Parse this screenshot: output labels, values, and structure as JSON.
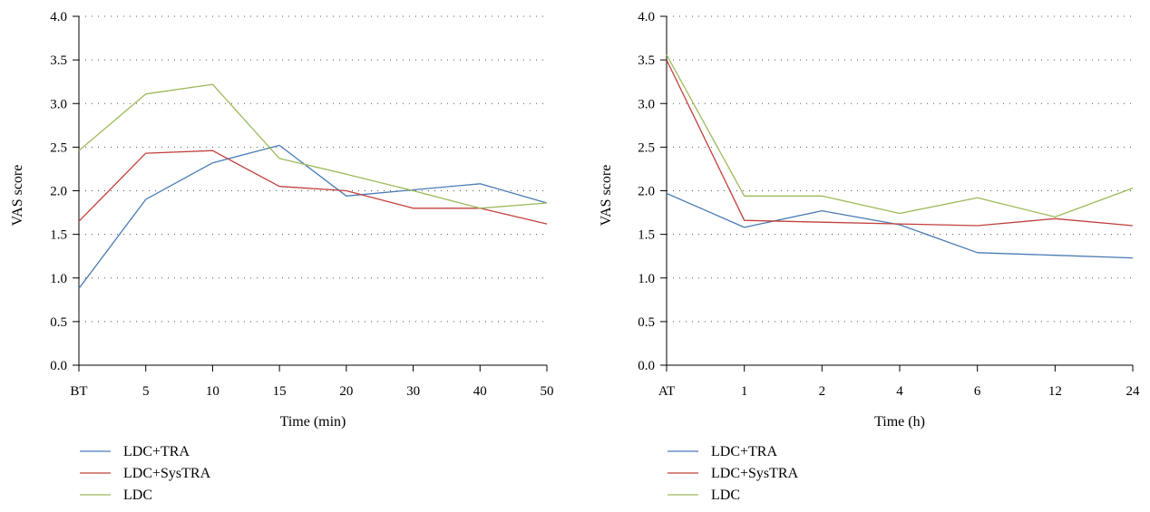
{
  "chart_data": [
    {
      "type": "line",
      "xlabel": "Time (min)",
      "ylabel": "VAS score",
      "categories": [
        "BT",
        "5",
        "10",
        "15",
        "20",
        "30",
        "40",
        "50"
      ],
      "ylim": [
        0,
        4
      ],
      "yticks": [
        "0.0",
        "0.5",
        "1.0",
        "1.5",
        "2.0",
        "2.5",
        "3.0",
        "3.5",
        "4.0"
      ],
      "grid": "horizontal-dotted",
      "legend_placement": "bottom-left",
      "series": [
        {
          "name": "LDC+TRA",
          "color": "#4a7bb5",
          "values": [
            0.88,
            1.9,
            2.32,
            2.52,
            1.94,
            2.01,
            2.08,
            1.86
          ]
        },
        {
          "name": "LDC+SysTRA",
          "color": "#c0403c",
          "values": [
            1.65,
            2.43,
            2.46,
            2.05,
            2.0,
            1.8,
            1.8,
            1.62
          ]
        },
        {
          "name": "LDC",
          "color": "#9bba59",
          "values": [
            2.46,
            3.11,
            3.22,
            2.37,
            2.19,
            2.0,
            1.8,
            1.86
          ]
        }
      ]
    },
    {
      "type": "line",
      "xlabel": "Time (h)",
      "ylabel": "VAS score",
      "categories": [
        "AT",
        "1",
        "2",
        "4",
        "6",
        "12",
        "24"
      ],
      "ylim": [
        0,
        4
      ],
      "yticks": [
        "0.0",
        "0.5",
        "1.0",
        "1.5",
        "2.0",
        "2.5",
        "3.0",
        "3.5",
        "4.0"
      ],
      "grid": "horizontal-dotted",
      "legend_placement": "bottom-left",
      "series": [
        {
          "name": "LDC+TRA",
          "color": "#4a7bb5",
          "values": [
            1.97,
            1.58,
            1.77,
            1.61,
            1.29,
            1.26,
            1.23
          ]
        },
        {
          "name": "LDC+SysTRA",
          "color": "#c0403c",
          "values": [
            3.5,
            1.66,
            1.64,
            1.62,
            1.6,
            1.68,
            1.6
          ]
        },
        {
          "name": "LDC",
          "color": "#9bba59",
          "values": [
            3.56,
            1.94,
            1.94,
            1.74,
            1.92,
            1.7,
            2.03
          ]
        }
      ]
    }
  ]
}
